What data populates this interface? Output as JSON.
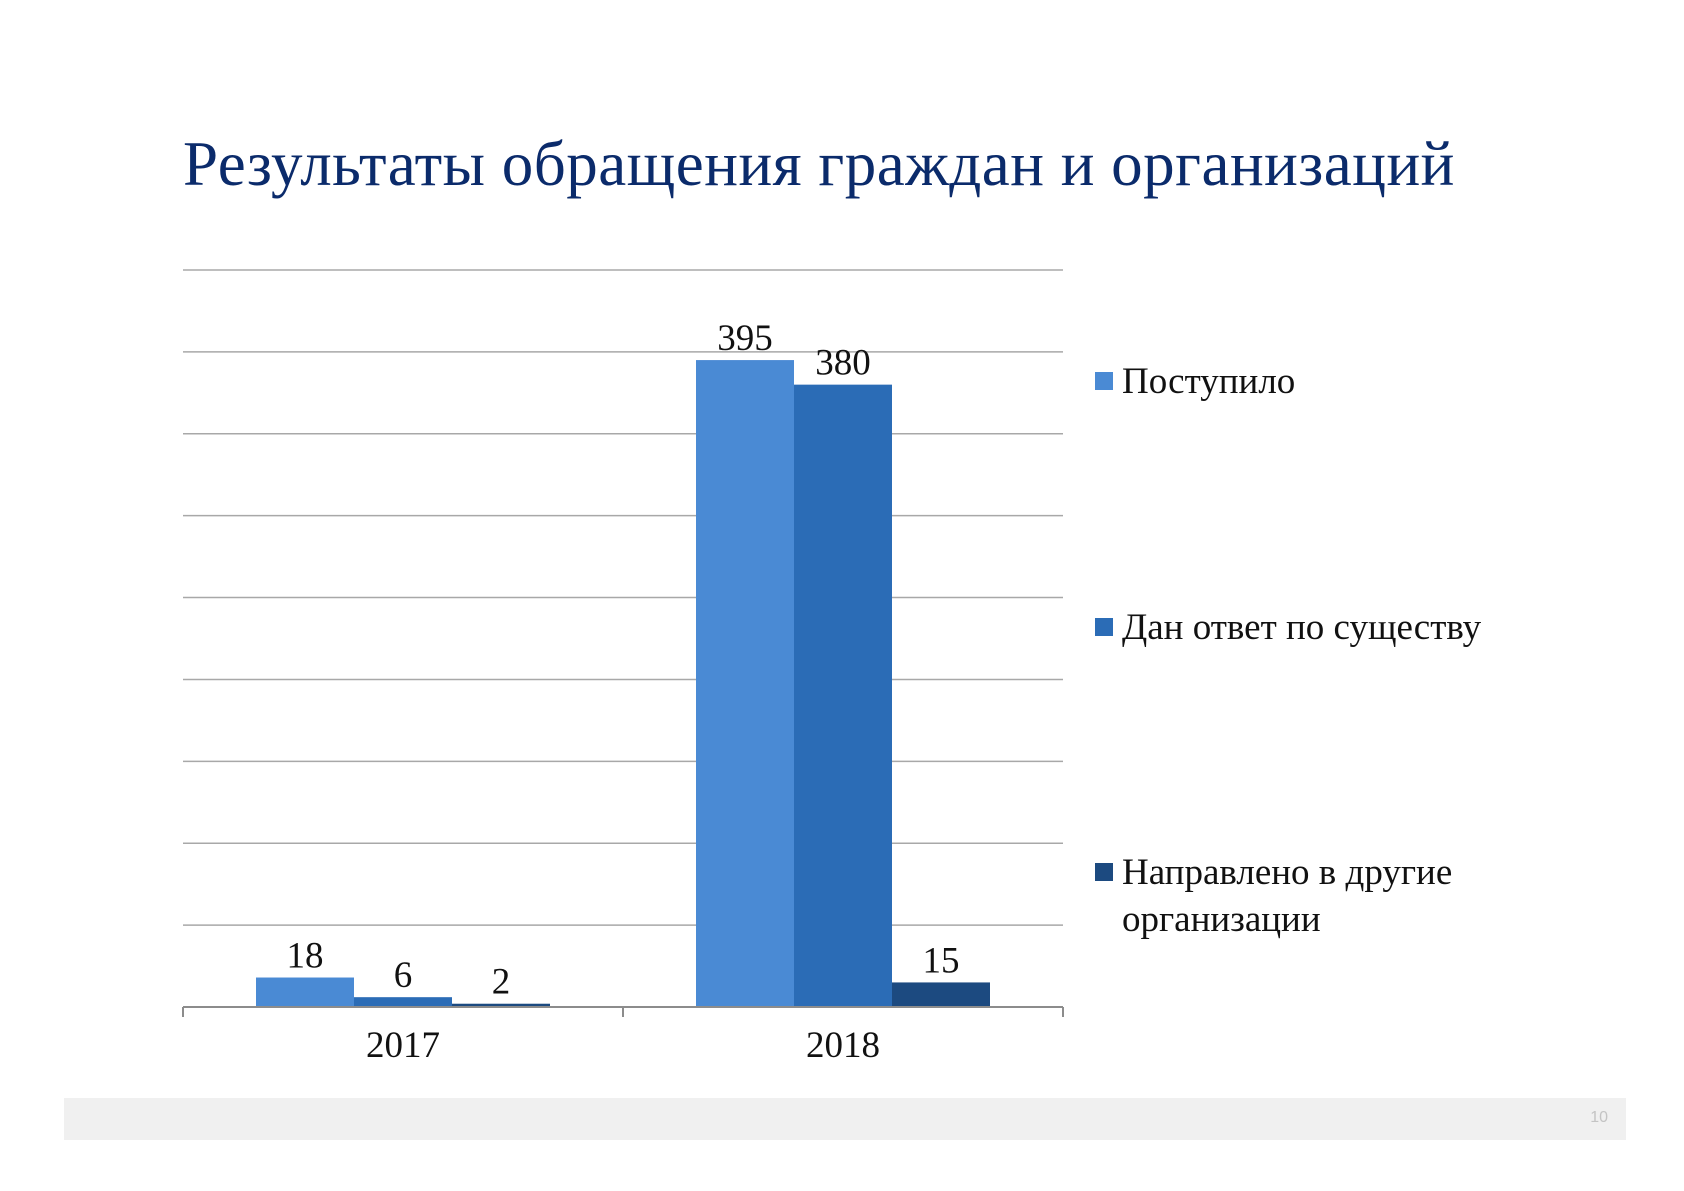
{
  "title": "Результаты обращения граждан и организаций",
  "chart_data": {
    "type": "bar",
    "title": "",
    "xlabel": "",
    "ylabel": "",
    "categories": [
      "2017",
      "2018"
    ],
    "series": [
      {
        "name": "Поступило",
        "values": [
          18,
          395
        ],
        "color": "#4a8ad4"
      },
      {
        "name": "Дан ответ по существу",
        "values": [
          6,
          380
        ],
        "color": "#2b6cb6"
      },
      {
        "name": "Направлено в другие организации",
        "values": [
          2,
          15
        ],
        "color": "#1c4a80"
      }
    ],
    "ylim": [
      0,
      450
    ],
    "ytick_step": 50,
    "show_y_tick_labels": false,
    "grid": true,
    "data_labels": true,
    "legend_position": "right"
  },
  "footer": {
    "page_number": "10"
  }
}
